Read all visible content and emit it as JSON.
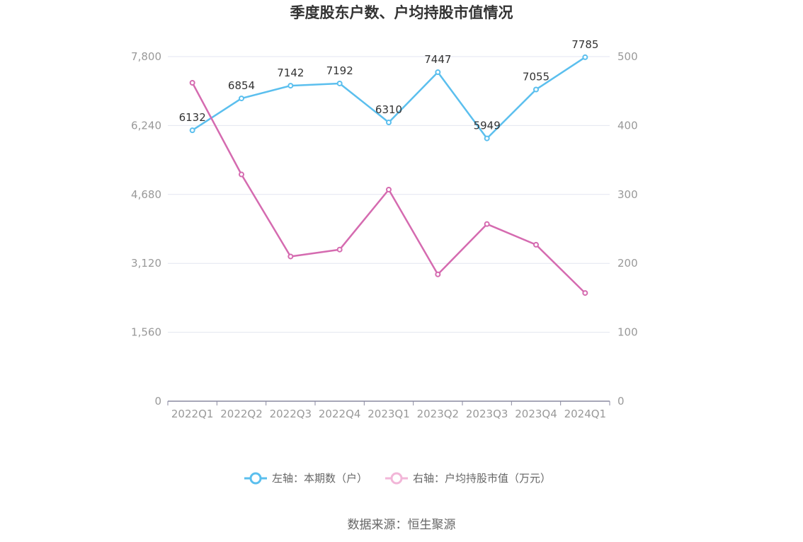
{
  "chart_data": {
    "type": "line",
    "title": "季度股东户数、户均持股市值情况",
    "categories": [
      "2022Q1",
      "2022Q2",
      "2022Q3",
      "2022Q4",
      "2023Q1",
      "2023Q2",
      "2023Q3",
      "2023Q4",
      "2024Q1"
    ],
    "y_left": {
      "min": 0,
      "max": 7800,
      "ticks": [
        "0",
        "1,560",
        "3,120",
        "4,680",
        "6,240",
        "7,800"
      ],
      "tick_values": [
        0,
        1560,
        3120,
        4680,
        6240,
        7800
      ]
    },
    "y_right": {
      "min": 0,
      "max": 500,
      "ticks": [
        "0",
        "100",
        "200",
        "300",
        "400",
        "500"
      ],
      "tick_values": [
        0,
        100,
        200,
        300,
        400,
        500
      ]
    },
    "grid": true,
    "legend_position": "bottom-center",
    "series": [
      {
        "name": "左轴：本期数（户）",
        "axis": "left",
        "color": "#5bbfee",
        "values": [
          6132,
          6854,
          7142,
          7192,
          6310,
          7447,
          5949,
          7055,
          7785
        ],
        "labels": [
          "6132",
          "6854",
          "7142",
          "7192",
          "6310",
          "7447",
          "5949",
          "7055",
          "7785"
        ]
      },
      {
        "name": "右轴：户均持股市值（万元）",
        "axis": "right",
        "color": "#d56bb0",
        "values": [
          462,
          329,
          210,
          220,
          307,
          184,
          257,
          227,
          157
        ]
      }
    ]
  },
  "source": "数据来源：恒生聚源",
  "legend_symbol_colors": {
    "left": "#5bbfee",
    "right": "#f2b6d8"
  }
}
